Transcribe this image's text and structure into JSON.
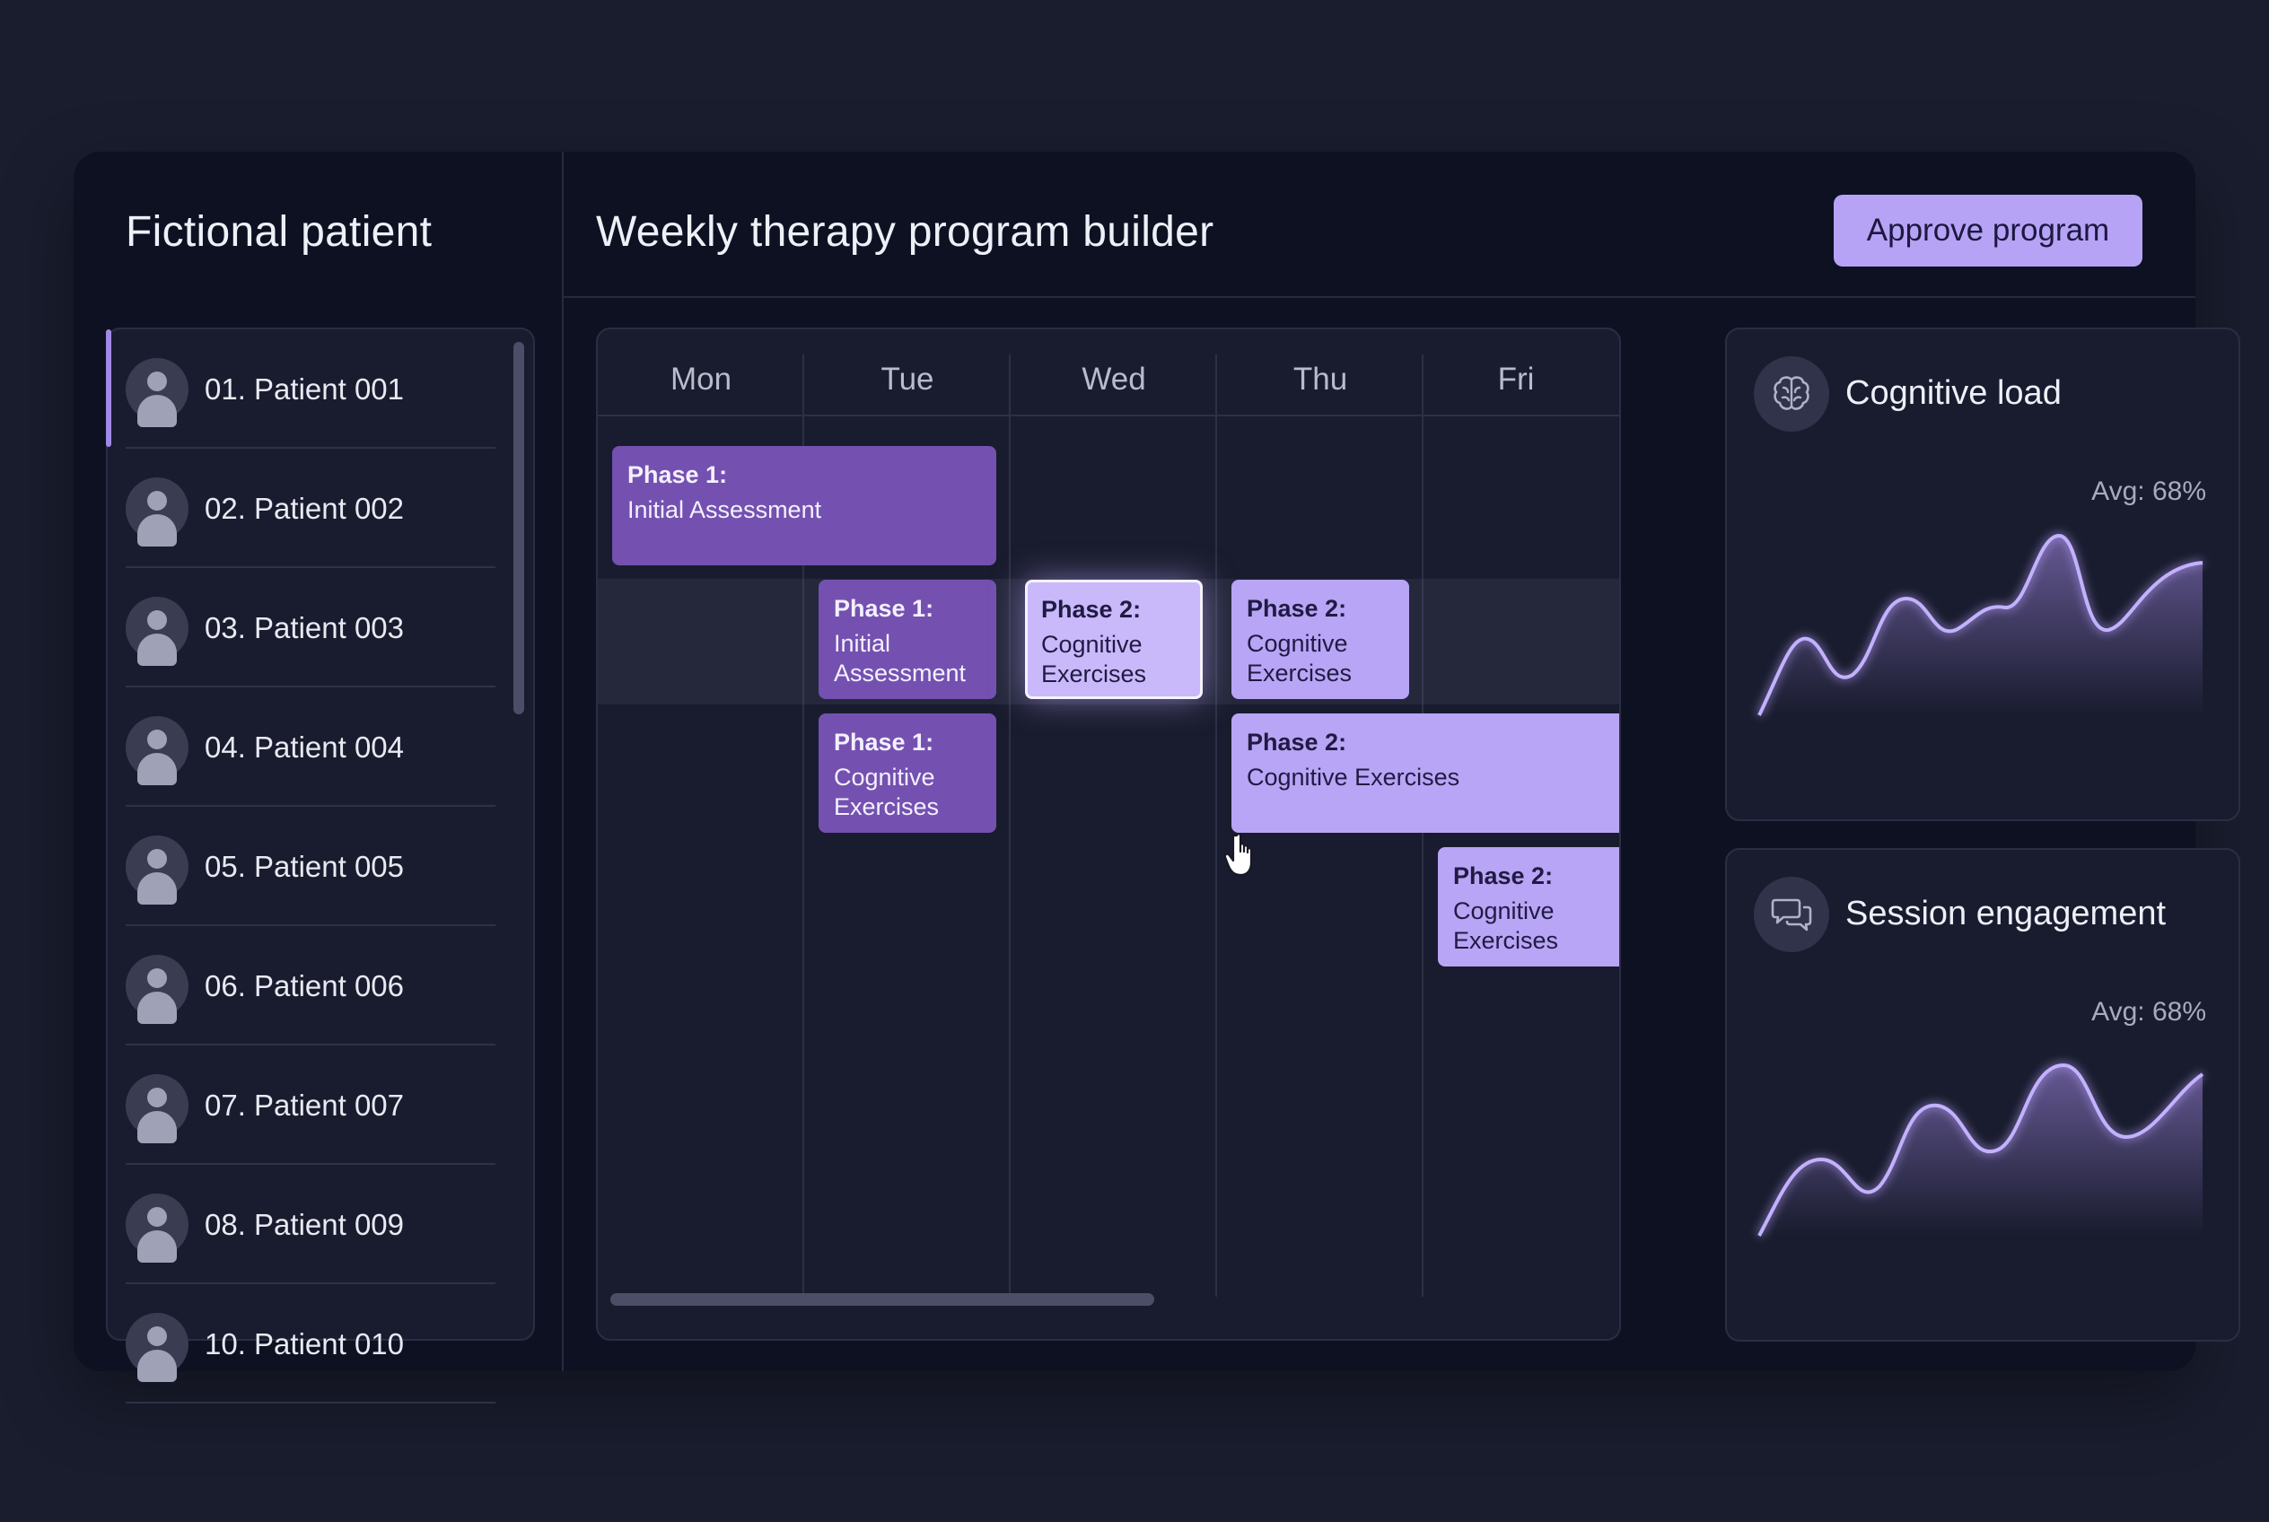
{
  "sidebar": {
    "title": "Fictional patient",
    "patients": [
      "01. Patient 001",
      "02. Patient 002",
      "03. Patient 003",
      "04. Patient 004",
      "05. Patient 005",
      "06. Patient 006",
      "07. Patient 007",
      "08. Patient 009",
      "10. Patient 010"
    ],
    "active_index": 0
  },
  "header": {
    "title": "Weekly therapy program builder",
    "approve_label": "Approve program"
  },
  "calendar": {
    "days": [
      "Mon",
      "Tue",
      "Wed",
      "Thu",
      "Fri"
    ],
    "blocks": [
      {
        "phase": "Phase 1:",
        "name": "Initial Assessment",
        "style": "dark"
      },
      {
        "phase": "Phase 1:",
        "name": "Initial Assessment",
        "style": "dark"
      },
      {
        "phase": "Phase 2:",
        "name": "Cognitive Exercises",
        "style": "selected"
      },
      {
        "phase": "Phase 2:",
        "name": "Cognitive Exercises",
        "style": "light"
      },
      {
        "phase": "Phase 1:",
        "name": "Cognitive Exercises",
        "style": "dark"
      },
      {
        "phase": "Phase 2:",
        "name": "Cognitive Exercises",
        "style": "light"
      },
      {
        "phase": "Phase 2:",
        "name": "Cognitive Exercises",
        "style": "light"
      }
    ]
  },
  "metrics": {
    "cognitive_load": {
      "title": "Cognitive load",
      "avg": "Avg: 68%",
      "icon": "brain-icon"
    },
    "session_engagement": {
      "title": "Session engagement",
      "avg": "Avg: 68%",
      "icon": "chat-bubbles-icon"
    }
  },
  "colors": {
    "accent": "#b7a3f5",
    "block_dark": "#7451b0",
    "block_light": "#b8a5f5",
    "background": "#1a1d2e",
    "panel": "#0d1122"
  }
}
